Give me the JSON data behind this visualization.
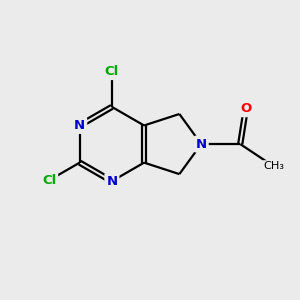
{
  "background_color": "#ebebeb",
  "atom_colors": {
    "C": "#000000",
    "N": "#0000cc",
    "Cl": "#00aa00",
    "O": "#ff0000"
  },
  "bond_color": "#000000",
  "bond_lw": 1.6,
  "figsize": [
    3.0,
    3.0
  ],
  "dpi": 100,
  "xlim": [
    0,
    10
  ],
  "ylim": [
    0,
    10
  ],
  "font_size": 9.5
}
